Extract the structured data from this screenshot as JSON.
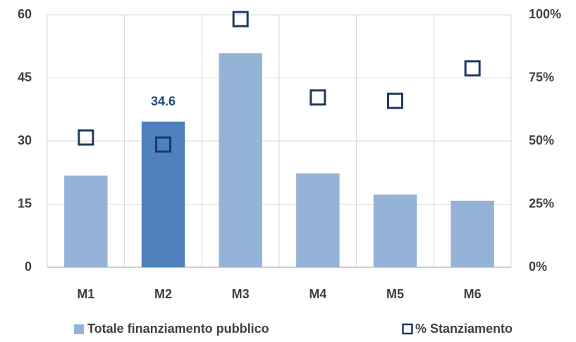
{
  "chart_data": {
    "type": "bar",
    "categories": [
      "M1",
      "M2",
      "M3",
      "M4",
      "M5",
      "M6"
    ],
    "series": [
      {
        "name": "Totale finanziamento pubblico",
        "type": "bar",
        "color": "#95b3d7",
        "values": [
          21.8,
          34.6,
          50.9,
          22.3,
          17.3,
          15.8
        ]
      },
      {
        "name": "% Stanziamento",
        "type": "marker",
        "axis": "y2",
        "color": "#1f3864",
        "values": [
          51.4,
          48.6,
          98.3,
          67.3,
          65.9,
          78.8
        ]
      }
    ],
    "highlight": {
      "index": 1,
      "color": "#4f81bd",
      "label_color": "#1f4e79"
    },
    "ylim": [
      0,
      60
    ],
    "yticks": [
      0,
      15,
      30,
      45,
      60
    ],
    "y2lim": [
      0,
      100
    ],
    "y2ticks": [
      {
        "value": 0,
        "label": "0%"
      },
      {
        "value": 25,
        "label": "25%"
      },
      {
        "value": 50,
        "label": "50%"
      },
      {
        "value": 75,
        "label": "75%"
      },
      {
        "value": 100,
        "label": "100%"
      }
    ],
    "grid": true,
    "legend": "bottom"
  }
}
